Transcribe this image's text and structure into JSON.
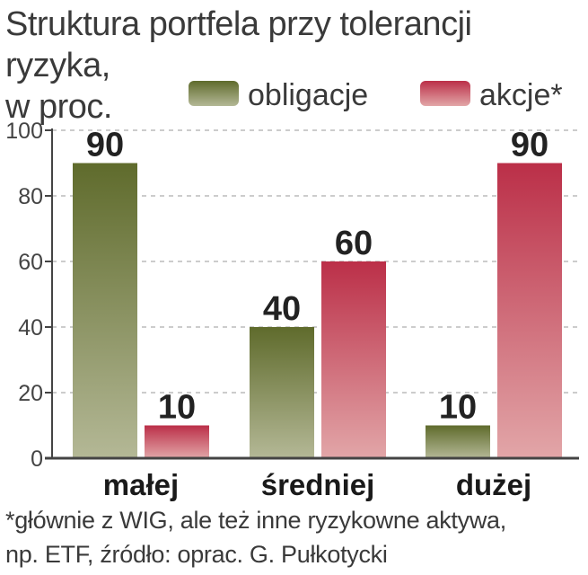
{
  "title_line1": "Struktura portfela przy tolerancji ryzyka,",
  "title_line2": "w proc.",
  "footnote_line1": "*głównie z WIG, ale też inne ryzykowne aktywa,",
  "footnote_line2": "np. ETF, źródło: oprac. G. Pułkotycki",
  "colors": {
    "bond_top": "#5f6b2c",
    "bond_bottom": "#b4b896",
    "equity_top": "#bb2f48",
    "equity_bottom": "#e2a6a8",
    "axis": "#444444",
    "grid": "#bbbbbb"
  },
  "chart_data": {
    "type": "bar",
    "title": "Struktura portfela przy tolerancji ryzyka, w proc.",
    "categories": [
      "małej",
      "średniej",
      "dużej"
    ],
    "series": [
      {
        "name": "obligacje",
        "values": [
          90,
          40,
          10
        ]
      },
      {
        "name": "akcje*",
        "values": [
          10,
          60,
          90
        ]
      }
    ],
    "yticks": [
      0,
      20,
      40,
      60,
      80,
      100
    ],
    "ylim": [
      0,
      100
    ],
    "grid": true,
    "legend_position": "top-right"
  }
}
